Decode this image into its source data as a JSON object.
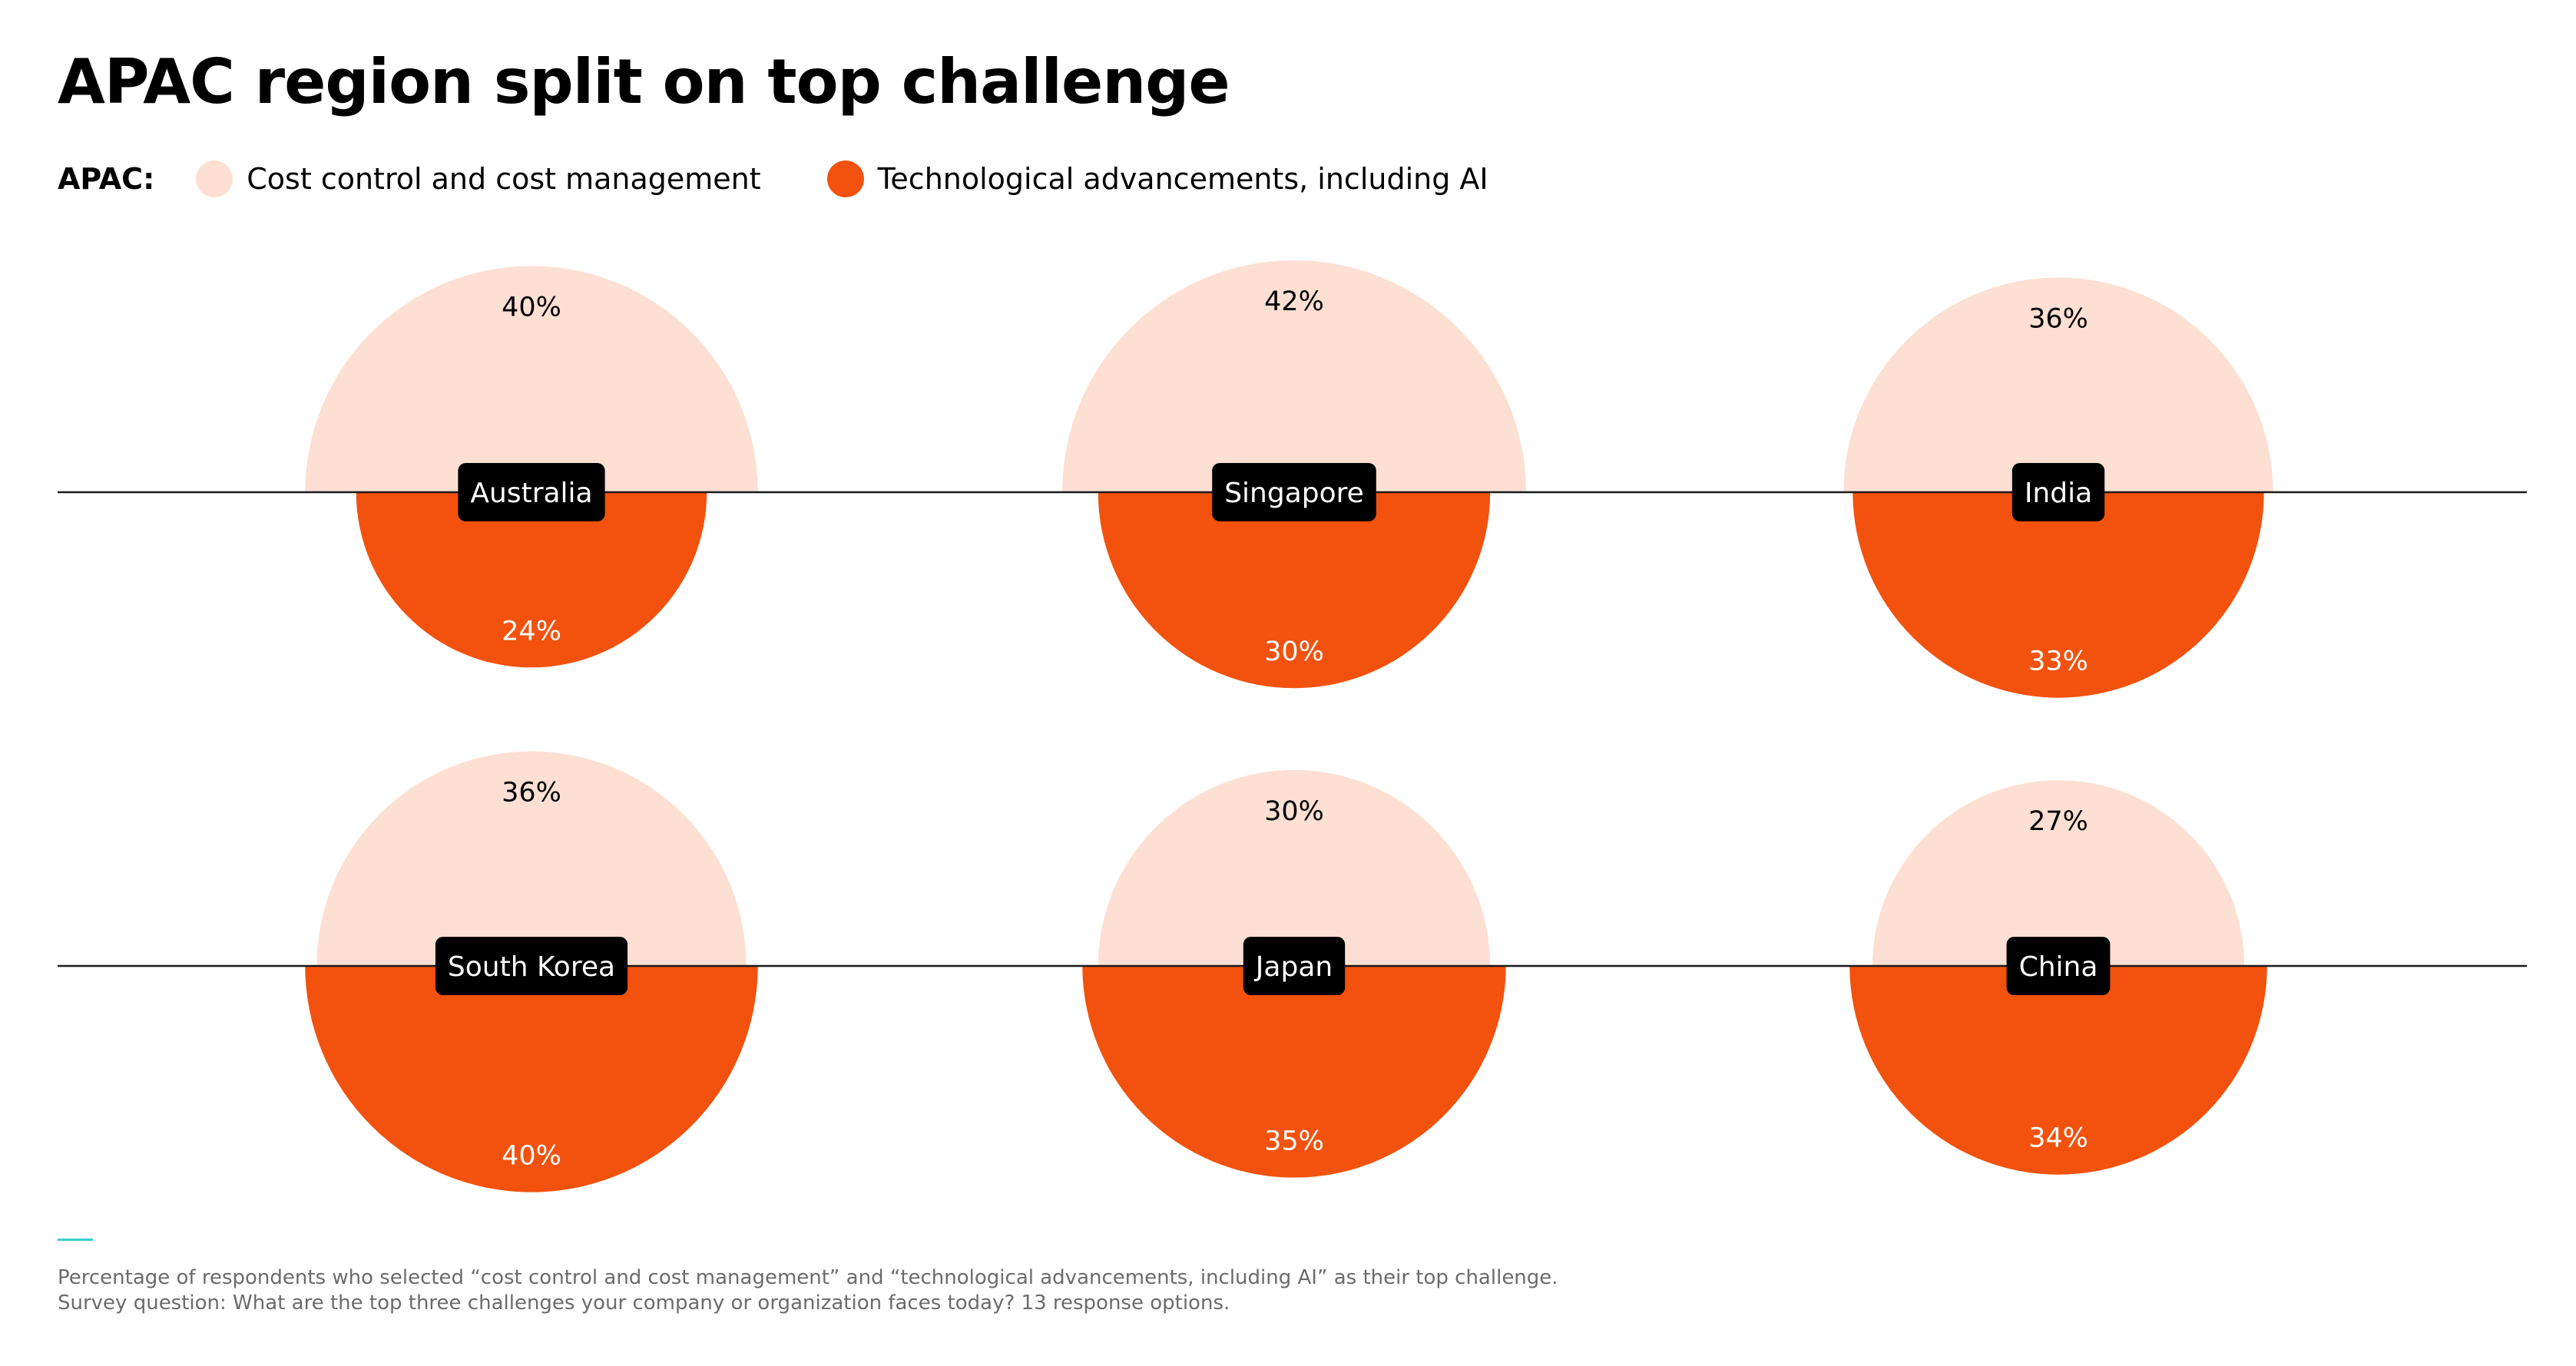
{
  "title": "APAC region split on top challenge",
  "legend": {
    "title": "APAC:",
    "items": [
      {
        "label": "Cost control and cost management",
        "color": "#fde0d3"
      },
      {
        "label": "Technological advancements, including AI",
        "color": "#f2520d"
      }
    ]
  },
  "chart_data": {
    "type": "split-circle",
    "series": [
      {
        "name": "Cost control and cost management",
        "color": "#fde0d3"
      },
      {
        "name": "Technological advancements, including AI",
        "color": "#f2520d"
      }
    ],
    "countries": [
      {
        "name": "Australia",
        "values": [
          40,
          24
        ],
        "labels": [
          "40%",
          "24%"
        ]
      },
      {
        "name": "Singapore",
        "values": [
          42,
          30
        ],
        "labels": [
          "42%",
          "30%"
        ]
      },
      {
        "name": "India",
        "values": [
          36,
          33
        ],
        "labels": [
          "36%",
          "33%"
        ]
      },
      {
        "name": "South Korea",
        "values": [
          36,
          40
        ],
        "labels": [
          "36%",
          "40%"
        ]
      },
      {
        "name": "Japan",
        "values": [
          30,
          35
        ],
        "labels": [
          "30%",
          "35%"
        ]
      },
      {
        "name": "China",
        "values": [
          27,
          34
        ],
        "labels": [
          "27%",
          "34%"
        ]
      }
    ]
  },
  "footnotes": [
    "Percentage of respondents who selected “cost control and cost management” and “technological advancements, including AI” as their top challenge.",
    "Survey question: What are the top three challenges your company or organization faces today? 13 response options."
  ],
  "colors": {
    "country_label_bg": "#000000",
    "country_label_text": "#ffffff",
    "baseline": "#1a1a1a"
  }
}
